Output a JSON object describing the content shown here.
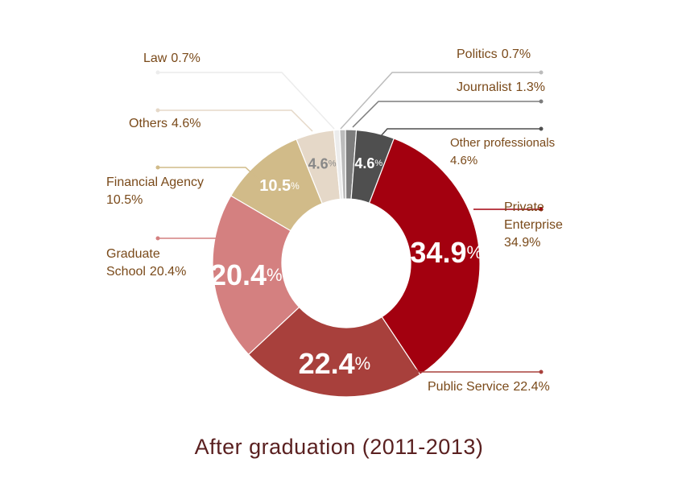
{
  "title": "After graduation (2011-2013)",
  "chart_data": {
    "type": "pie",
    "style": "donut",
    "title": "After graduation (2011-2013)",
    "slices": [
      {
        "name": "Private Enterprise",
        "label_lines": [
          "Private",
          "Enterprise"
        ],
        "value": 34.9,
        "color": "#a3000f",
        "text_color": "#ffffff",
        "inner_label": "34.9"
      },
      {
        "name": "Public Service",
        "label_lines": [
          "Public Service"
        ],
        "value": 22.4,
        "color": "#a8403c",
        "text_color": "#ffffff",
        "inner_label": "22.4"
      },
      {
        "name": "Graduate School",
        "label_lines": [
          "Graduate",
          "School"
        ],
        "value": 20.4,
        "color": "#d48080",
        "text_color": "#ffffff",
        "inner_label": "20.4"
      },
      {
        "name": "Financial Agency",
        "label_lines": [
          "Financial Agency"
        ],
        "value": 10.5,
        "color": "#d1bb89",
        "text_color": "#ffffff",
        "inner_label": "10.5"
      },
      {
        "name": "Others",
        "label_lines": [
          "Others"
        ],
        "value": 4.6,
        "color": "#e5d8c8",
        "text_color": "#888888",
        "inner_label": "4.6"
      },
      {
        "name": "Law",
        "label_lines": [
          "Law"
        ],
        "value": 0.7,
        "color": "#ececec",
        "text_color": "#888888",
        "inner_label": ""
      },
      {
        "name": "Politics",
        "label_lines": [
          "Politics"
        ],
        "value": 0.7,
        "color": "#bcbcbc",
        "text_color": "#ffffff",
        "inner_label": ""
      },
      {
        "name": "Journalist",
        "label_lines": [
          "Journalist"
        ],
        "value": 1.3,
        "color": "#7d7d7d",
        "text_color": "#ffffff",
        "inner_label": ""
      },
      {
        "name": "Other professionals",
        "label_lines": [
          "Other professionals"
        ],
        "value": 4.6,
        "color": "#4f4f4f",
        "text_color": "#ffffff",
        "inner_label": "4.6"
      }
    ],
    "unit": "%",
    "legend": "callouts"
  }
}
